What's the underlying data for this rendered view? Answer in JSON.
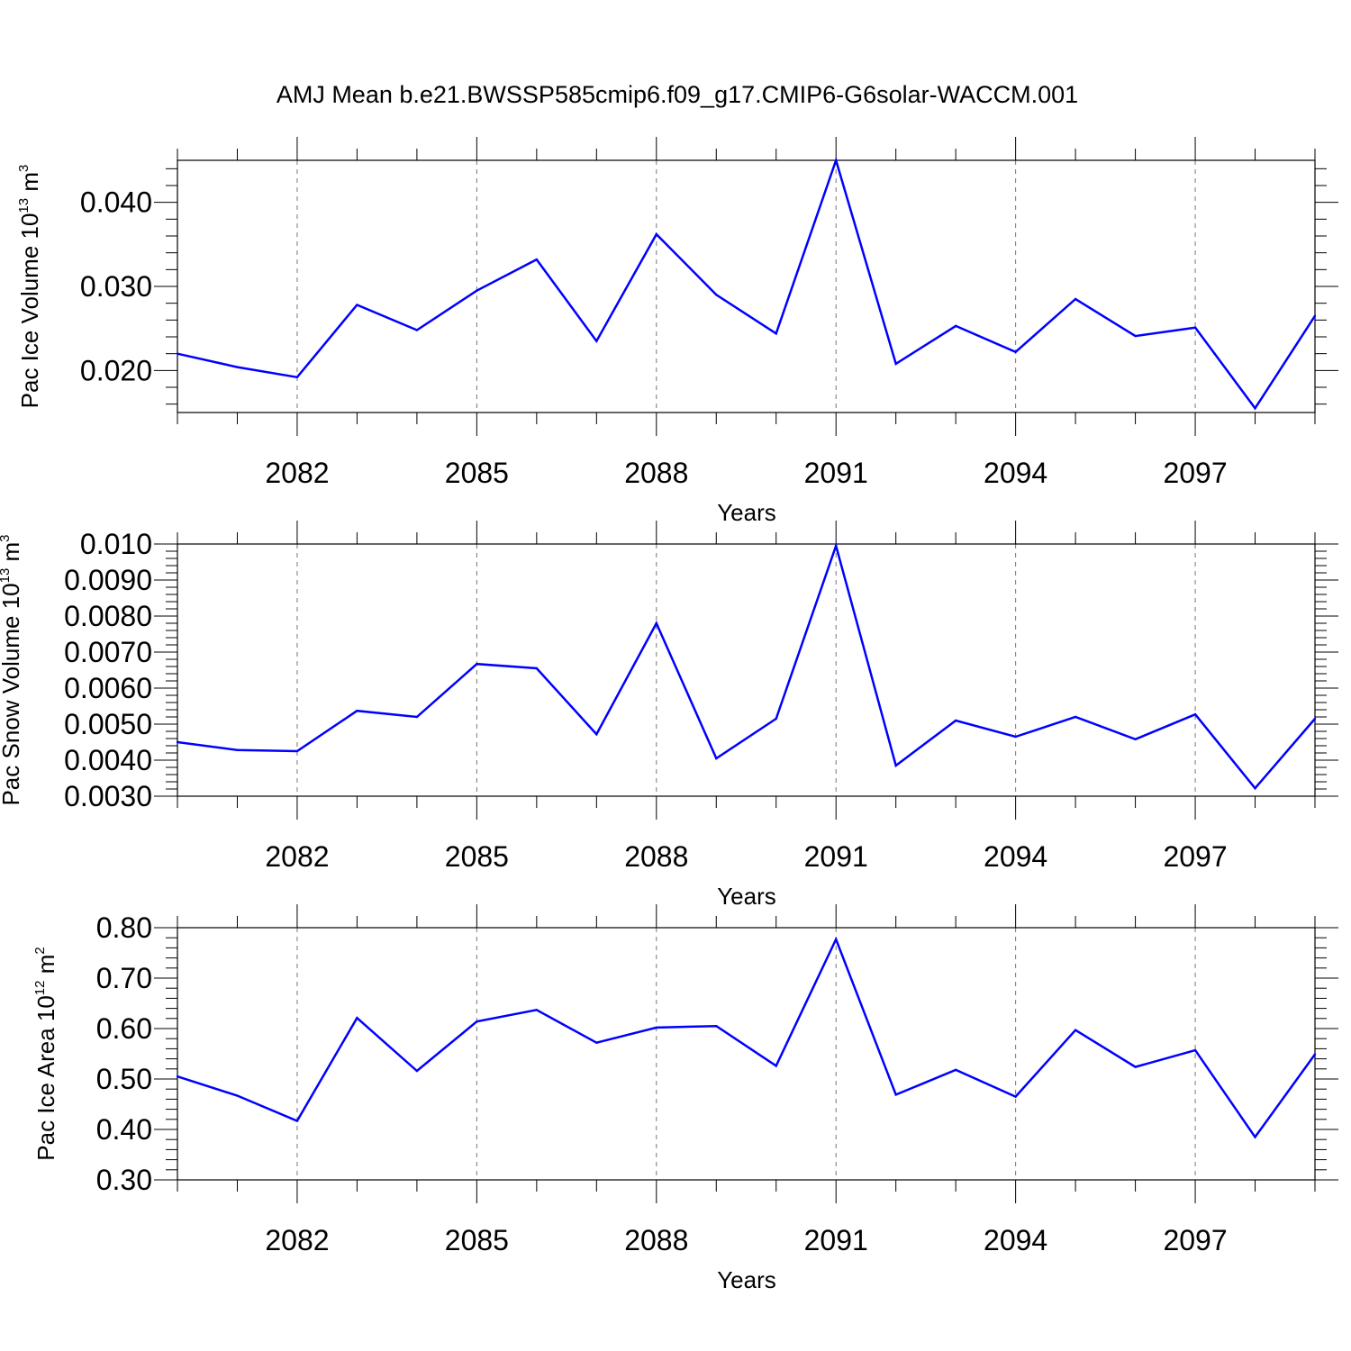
{
  "title": "AMJ Mean b.e21.BWSSP585cmip6.f09_g17.CMIP6-G6solar-WACCM.001",
  "line_color": "#0000ff",
  "chart_data": [
    {
      "type": "line",
      "ylabel": {
        "main": "Pac Ice Volume 10",
        "sup": "13",
        "unit": " m",
        "unit_sup": "3"
      },
      "xlabel": "Years",
      "xlim": [
        2080,
        2099
      ],
      "ylim": [
        0.015,
        0.045
      ],
      "xticks": [
        2082,
        2085,
        2088,
        2091,
        2094,
        2097
      ],
      "yticks": [
        0.02,
        0.03,
        0.04
      ],
      "ytick_labels": [
        "0.020",
        "0.030",
        "0.040"
      ],
      "x": [
        2080,
        2081,
        2082,
        2083,
        2084,
        2085,
        2086,
        2087,
        2088,
        2089,
        2090,
        2091,
        2092,
        2093,
        2094,
        2095,
        2096,
        2097,
        2098,
        2099
      ],
      "values": [
        0.022,
        0.0204,
        0.0192,
        0.0278,
        0.0248,
        0.0295,
        0.0332,
        0.0235,
        0.0362,
        0.029,
        0.0244,
        0.045,
        0.0208,
        0.0253,
        0.0222,
        0.0285,
        0.0241,
        0.0251,
        0.0155,
        0.0265
      ]
    },
    {
      "type": "line",
      "ylabel": {
        "main": "Pac Snow Volume 10",
        "sup": "13",
        "unit": " m",
        "unit_sup": "3"
      },
      "xlabel": "Years",
      "xlim": [
        2080,
        2099
      ],
      "ylim": [
        0.003,
        0.01
      ],
      "xticks": [
        2082,
        2085,
        2088,
        2091,
        2094,
        2097
      ],
      "yticks": [
        0.003,
        0.004,
        0.005,
        0.006,
        0.007,
        0.008,
        0.009,
        0.01
      ],
      "ytick_labels": [
        "0.0030",
        "0.0040",
        "0.0050",
        "0.0060",
        "0.0070",
        "0.0080",
        "0.0090",
        "0.010"
      ],
      "x": [
        2080,
        2081,
        2082,
        2083,
        2084,
        2085,
        2086,
        2087,
        2088,
        2089,
        2090,
        2091,
        2092,
        2093,
        2094,
        2095,
        2096,
        2097,
        2098,
        2099
      ],
      "values": [
        0.0045,
        0.00428,
        0.00425,
        0.00537,
        0.0052,
        0.00667,
        0.00655,
        0.00472,
        0.0078,
        0.00405,
        0.00515,
        0.00995,
        0.00385,
        0.0051,
        0.00465,
        0.0052,
        0.00458,
        0.00527,
        0.00322,
        0.00515
      ]
    },
    {
      "type": "line",
      "ylabel": {
        "main": "Pac Ice Area 10",
        "sup": "12",
        "unit": " m",
        "unit_sup": "2"
      },
      "xlabel": "Years",
      "xlim": [
        2080,
        2099
      ],
      "ylim": [
        0.3,
        0.8
      ],
      "xticks": [
        2082,
        2085,
        2088,
        2091,
        2094,
        2097
      ],
      "yticks": [
        0.3,
        0.4,
        0.5,
        0.6,
        0.7,
        0.8
      ],
      "ytick_labels": [
        "0.30",
        "0.40",
        "0.50",
        "0.60",
        "0.70",
        "0.80"
      ],
      "x": [
        2080,
        2081,
        2082,
        2083,
        2084,
        2085,
        2086,
        2087,
        2088,
        2089,
        2090,
        2091,
        2092,
        2093,
        2094,
        2095,
        2096,
        2097,
        2098,
        2099
      ],
      "values": [
        0.505,
        0.467,
        0.417,
        0.621,
        0.516,
        0.614,
        0.637,
        0.572,
        0.602,
        0.605,
        0.526,
        0.777,
        0.469,
        0.518,
        0.465,
        0.597,
        0.524,
        0.557,
        0.385,
        0.549
      ]
    }
  ]
}
